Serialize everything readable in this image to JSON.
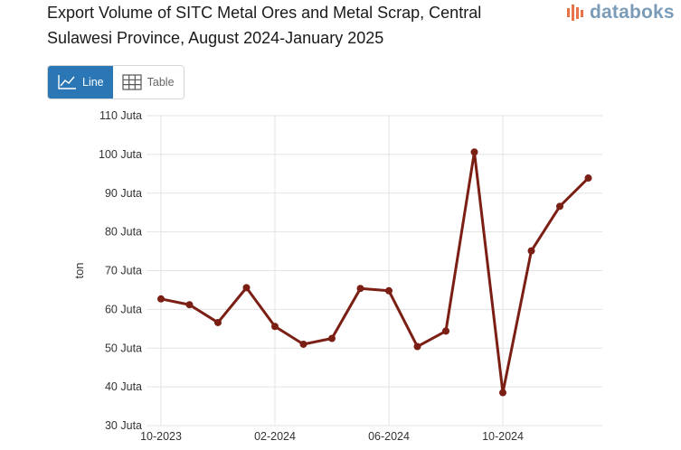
{
  "header": {
    "title_line1": "Export Volume of SITC Metal Ores and Metal Scrap, Central",
    "title_line2": "Sulawesi Province, August 2024-January 2025",
    "brand": "databoks"
  },
  "view_toggle": {
    "line_label": "Line",
    "table_label": "Table"
  },
  "colors": {
    "series": "#7b1f14",
    "accent": "#2b77b6",
    "brand": "#7a9cb8",
    "brand_icon": "#e8734a"
  },
  "chart_data": {
    "type": "line",
    "title": "Export Volume of SITC Metal Ores and Metal Scrap, Central Sulawesi Province, August 2024-January 2025",
    "xlabel": "",
    "ylabel": "ton",
    "ylim": [
      30,
      110
    ],
    "yticks": [
      30,
      40,
      50,
      60,
      70,
      80,
      90,
      100,
      110
    ],
    "ytick_labels": [
      "30 Juta",
      "40 Juta",
      "50 Juta",
      "60 Juta",
      "70 Juta",
      "80 Juta",
      "90 Juta",
      "100 Juta",
      "110 Juta"
    ],
    "xticks": [
      {
        "index": 0,
        "label": "10-2023"
      },
      {
        "index": 4,
        "label": "02-2024"
      },
      {
        "index": 8,
        "label": "06-2024"
      },
      {
        "index": 12,
        "label": "10-2024"
      }
    ],
    "grid": true,
    "series": [
      {
        "name": "Export Volume",
        "unit": "Juta ton",
        "values": [
          62.7,
          61.2,
          56.6,
          65.6,
          55.6,
          51.0,
          52.5,
          65.4,
          64.8,
          50.4,
          54.4,
          100.6,
          38.5,
          75.1,
          86.6,
          93.9
        ]
      }
    ]
  }
}
